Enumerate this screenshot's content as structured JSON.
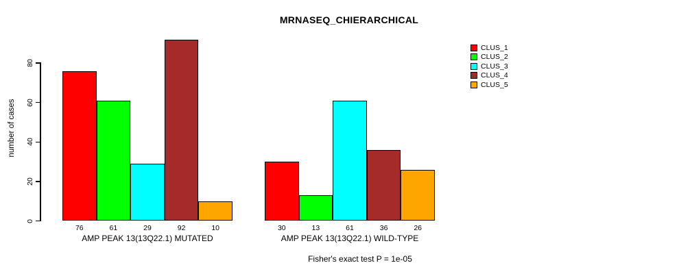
{
  "chart_data": {
    "type": "bar",
    "title": "MRNASEQ_CHIERARCHICAL",
    "ylabel": "number of cases",
    "xlabel": "",
    "annotation": "Fisher's exact test P = 1e-05",
    "yticks": [
      0,
      20,
      40,
      60,
      80
    ],
    "ylim": [
      0,
      93
    ],
    "grid": false,
    "legend_position": "right-outside",
    "bar_value_labels_shown": true,
    "categories": [
      "AMP PEAK 13(13Q22.1) MUTATED",
      "AMP PEAK 13(13Q22.1) WILD-TYPE"
    ],
    "series": [
      {
        "name": "CLUS_1",
        "color": "#FF0000",
        "values": [
          76,
          30
        ]
      },
      {
        "name": "CLUS_2",
        "color": "#00FF00",
        "values": [
          61,
          13
        ]
      },
      {
        "name": "CLUS_3",
        "color": "#00FFFF",
        "values": [
          29,
          61
        ]
      },
      {
        "name": "CLUS_4",
        "color": "#A52A2A",
        "values": [
          92,
          36
        ]
      },
      {
        "name": "CLUS_5",
        "color": "#FFA500",
        "values": [
          10,
          26
        ]
      }
    ]
  }
}
